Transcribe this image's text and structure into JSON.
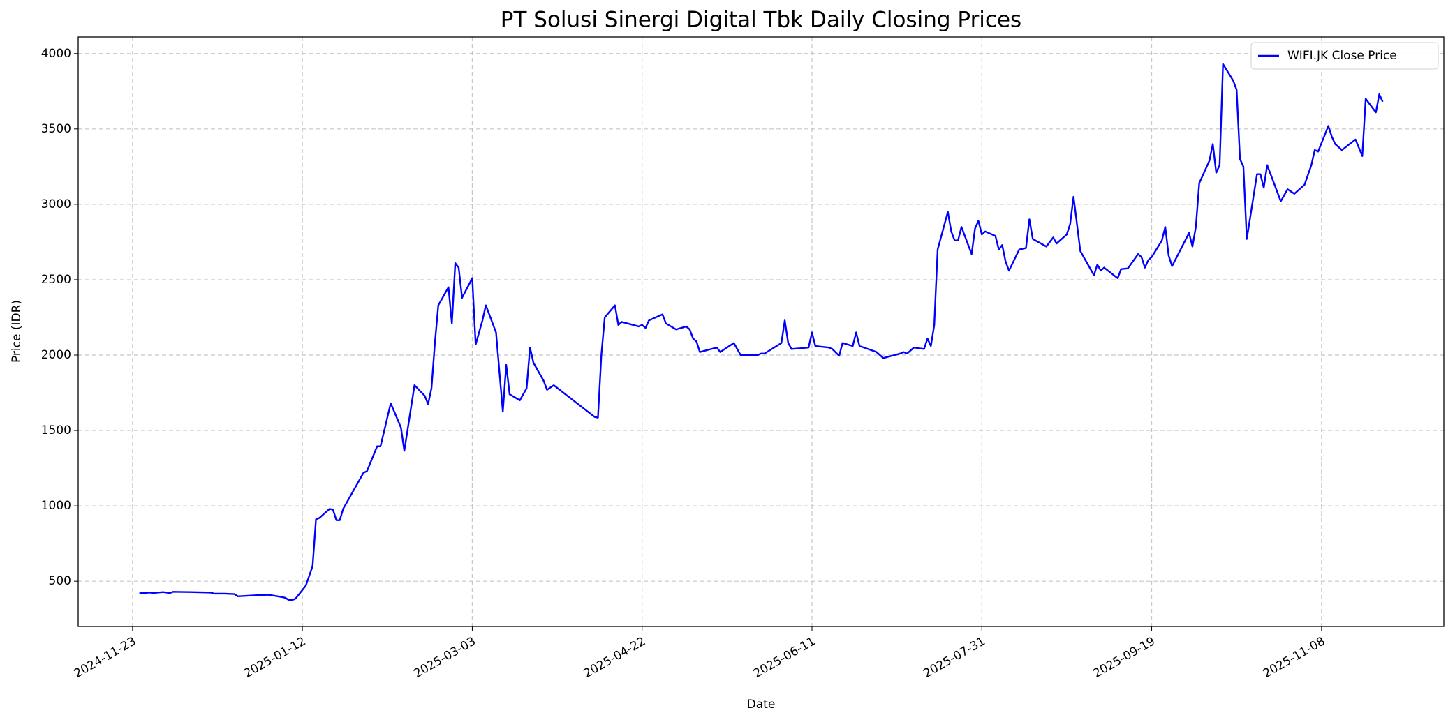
{
  "chart_data": {
    "type": "line",
    "title": "PT Solusi Sinergi Digital Tbk Daily Closing Prices",
    "x_label": "Date",
    "y_label": "Price (IDR)",
    "x": [
      "2024-11-25",
      "2024-11-28",
      "2024-11-29",
      "2024-12-02",
      "2024-12-04",
      "2024-12-05",
      "2024-12-10",
      "2024-12-16",
      "2024-12-17",
      "2024-12-20",
      "2024-12-23",
      "2024-12-24",
      "2024-12-30",
      "2025-01-02",
      "2025-01-06",
      "2025-01-07",
      "2025-01-08",
      "2025-01-09",
      "2025-01-10",
      "2025-01-13",
      "2025-01-15",
      "2025-01-16",
      "2025-01-17",
      "2025-01-20",
      "2025-01-21",
      "2025-01-22",
      "2025-01-23",
      "2025-01-24",
      "2025-01-30",
      "2025-01-31",
      "2025-02-03",
      "2025-02-04",
      "2025-02-07",
      "2025-02-10",
      "2025-02-11",
      "2025-02-14",
      "2025-02-17",
      "2025-02-18",
      "2025-02-19",
      "2025-02-20",
      "2025-02-21",
      "2025-02-24",
      "2025-02-25",
      "2025-02-26",
      "2025-02-27",
      "2025-02-28",
      "2025-03-03",
      "2025-03-04",
      "2025-03-06",
      "2025-03-07",
      "2025-03-10",
      "2025-03-12",
      "2025-03-13",
      "2025-03-14",
      "2025-03-17",
      "2025-03-19",
      "2025-03-20",
      "2025-03-21",
      "2025-03-24",
      "2025-03-25",
      "2025-03-27",
      "2025-04-08",
      "2025-04-09",
      "2025-04-10",
      "2025-04-11",
      "2025-04-14",
      "2025-04-15",
      "2025-04-16",
      "2025-04-21",
      "2025-04-22",
      "2025-04-23",
      "2025-04-24",
      "2025-04-28",
      "2025-04-29",
      "2025-05-02",
      "2025-05-05",
      "2025-05-06",
      "2025-05-07",
      "2025-05-08",
      "2025-05-09",
      "2025-05-14",
      "2025-05-15",
      "2025-05-19",
      "2025-05-21",
      "2025-05-26",
      "2025-05-27",
      "2025-05-28",
      "2025-06-02",
      "2025-06-03",
      "2025-06-04",
      "2025-06-05",
      "2025-06-10",
      "2025-06-11",
      "2025-06-12",
      "2025-06-16",
      "2025-06-17",
      "2025-06-19",
      "2025-06-20",
      "2025-06-23",
      "2025-06-24",
      "2025-06-25",
      "2025-06-30",
      "2025-07-02",
      "2025-07-07",
      "2025-07-08",
      "2025-07-09",
      "2025-07-11",
      "2025-07-14",
      "2025-07-15",
      "2025-07-16",
      "2025-07-17",
      "2025-07-18",
      "2025-07-21",
      "2025-07-22",
      "2025-07-23",
      "2025-07-24",
      "2025-07-25",
      "2025-07-28",
      "2025-07-29",
      "2025-07-30",
      "2025-07-31",
      "2025-08-01",
      "2025-08-04",
      "2025-08-05",
      "2025-08-06",
      "2025-08-07",
      "2025-08-08",
      "2025-08-11",
      "2025-08-13",
      "2025-08-14",
      "2025-08-15",
      "2025-08-19",
      "2025-08-21",
      "2025-08-22",
      "2025-08-25",
      "2025-08-26",
      "2025-08-27",
      "2025-08-29",
      "2025-09-02",
      "2025-09-03",
      "2025-09-04",
      "2025-09-05",
      "2025-09-09",
      "2025-09-10",
      "2025-09-12",
      "2025-09-15",
      "2025-09-16",
      "2025-09-17",
      "2025-09-18",
      "2025-09-19",
      "2025-09-22",
      "2025-09-23",
      "2025-09-24",
      "2025-09-25",
      "2025-09-30",
      "2025-10-01",
      "2025-10-02",
      "2025-10-03",
      "2025-10-06",
      "2025-10-07",
      "2025-10-08",
      "2025-10-09",
      "2025-10-10",
      "2025-10-13",
      "2025-10-14",
      "2025-10-15",
      "2025-10-16",
      "2025-10-17",
      "2025-10-20",
      "2025-10-21",
      "2025-10-22",
      "2025-10-23",
      "2025-10-27",
      "2025-10-29",
      "2025-10-31",
      "2025-11-03",
      "2025-11-05",
      "2025-11-06",
      "2025-11-07",
      "2025-11-10",
      "2025-11-11",
      "2025-11-12",
      "2025-11-14",
      "2025-11-18",
      "2025-11-20",
      "2025-11-21",
      "2025-11-24",
      "2025-11-25",
      "2025-11-26"
    ],
    "series": [
      {
        "name": "WIFI.JK Close Price",
        "color": "#0000ff",
        "values": [
          420,
          425,
          422,
          428,
          422,
          430,
          428,
          425,
          418,
          418,
          415,
          400,
          408,
          410,
          395,
          390,
          375,
          375,
          385,
          470,
          600,
          910,
          920,
          980,
          975,
          905,
          905,
          980,
          1220,
          1230,
          1395,
          1395,
          1680,
          1520,
          1365,
          1800,
          1730,
          1675,
          1780,
          2080,
          2330,
          2450,
          2210,
          2610,
          2580,
          2380,
          2510,
          2070,
          2230,
          2330,
          2150,
          1625,
          1935,
          1740,
          1700,
          1780,
          2050,
          1950,
          1830,
          1770,
          1800,
          1590,
          1585,
          2000,
          2250,
          2330,
          2200,
          2220,
          2190,
          2200,
          2180,
          2230,
          2270,
          2210,
          2170,
          2190,
          2170,
          2110,
          2090,
          2020,
          2050,
          2020,
          2080,
          2000,
          2000,
          2010,
          2010,
          2080,
          2230,
          2080,
          2040,
          2050,
          2150,
          2060,
          2050,
          2040,
          1995,
          2080,
          2060,
          2150,
          2060,
          2020,
          1980,
          2010,
          2020,
          2010,
          2050,
          2040,
          2110,
          2060,
          2200,
          2700,
          2950,
          2820,
          2760,
          2760,
          2850,
          2670,
          2840,
          2890,
          2800,
          2820,
          2790,
          2700,
          2730,
          2620,
          2560,
          2700,
          2710,
          2900,
          2770,
          2720,
          2780,
          2740,
          2800,
          2870,
          3050,
          2690,
          2530,
          2600,
          2560,
          2580,
          2510,
          2570,
          2575,
          2670,
          2650,
          2580,
          2630,
          2650,
          2760,
          2850,
          2660,
          2590,
          2810,
          2720,
          2850,
          3140,
          3290,
          3400,
          3210,
          3260,
          3930,
          3820,
          3760,
          3300,
          3250,
          2770,
          3200,
          3200,
          3110,
          3260,
          3020,
          3100,
          3070,
          3130,
          3260,
          3360,
          3350,
          3520,
          3450,
          3400,
          3360,
          3430,
          3320,
          3700,
          3610,
          3730,
          3680
        ]
      }
    ],
    "xlim": [
      "2024-11-07",
      "2025-12-14"
    ],
    "xticks": [
      "2024-11-23",
      "2025-01-12",
      "2025-03-03",
      "2025-04-22",
      "2025-06-11",
      "2025-07-31",
      "2025-09-19",
      "2025-11-08"
    ],
    "ylim": [
      200,
      4110
    ],
    "yticks": [
      500,
      1000,
      1500,
      2000,
      2500,
      3000,
      3500,
      4000
    ],
    "grid": true,
    "legend": "upper right"
  }
}
